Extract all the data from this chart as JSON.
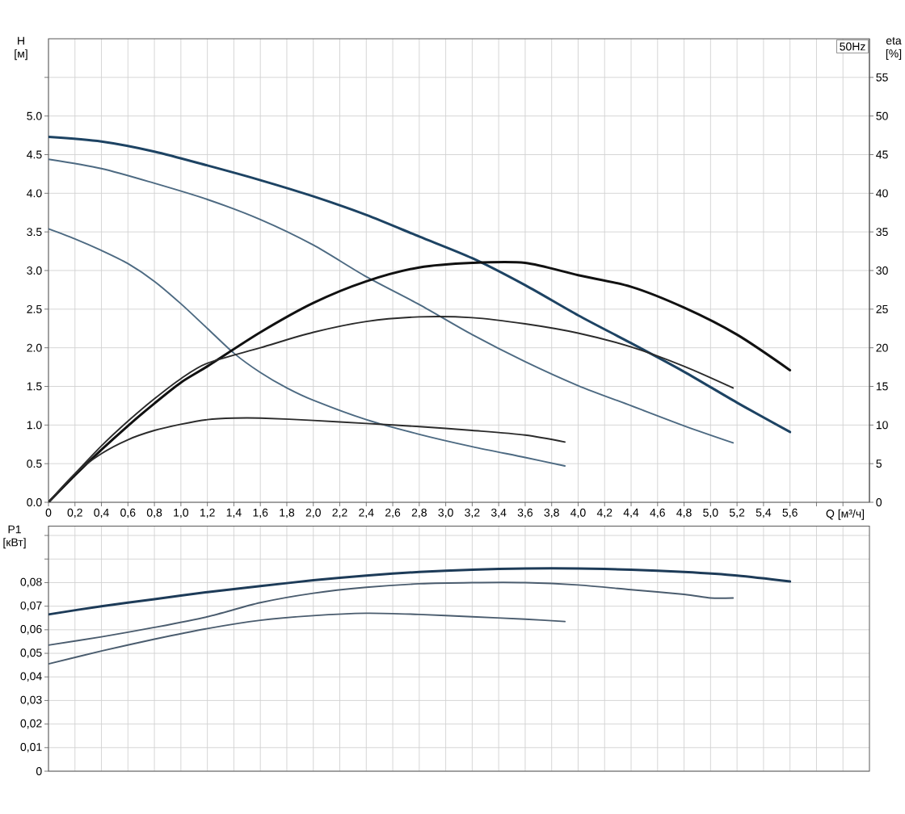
{
  "chart_data": [
    {
      "type": "line",
      "title": "50Hz",
      "xlabel": "Q [м³/ч]",
      "ylabel": "H [м]",
      "y2label": "eta [%]",
      "grid": true,
      "xlim": [
        0,
        6.2
      ],
      "xticks": [
        0,
        {
          "value": 0.2,
          "label": "0,2"
        },
        {
          "value": 0.4,
          "label": "0,4"
        },
        {
          "value": 0.6,
          "label": "0,6"
        },
        {
          "value": 0.8,
          "label": "0,8"
        },
        {
          "value": 1.0,
          "label": "1,0"
        },
        {
          "value": 1.2,
          "label": "1,2"
        },
        {
          "value": 1.4,
          "label": "1,4"
        },
        {
          "value": 1.6,
          "label": "1,6"
        },
        {
          "value": 1.8,
          "label": "1,8"
        },
        {
          "value": 2.0,
          "label": "2,0"
        },
        {
          "value": 2.2,
          "label": "2,2"
        },
        {
          "value": 2.4,
          "label": "2,4"
        },
        {
          "value": 2.6,
          "label": "2,6"
        },
        {
          "value": 2.8,
          "label": "2,8"
        },
        {
          "value": 3.0,
          "label": "3,0"
        },
        {
          "value": 3.2,
          "label": "3,2"
        },
        {
          "value": 3.4,
          "label": "3,4"
        },
        {
          "value": 3.6,
          "label": "3,6"
        },
        {
          "value": 3.8,
          "label": "3,8"
        },
        {
          "value": 4.0,
          "label": "4,0"
        },
        {
          "value": 4.2,
          "label": "4,2"
        },
        {
          "value": 4.4,
          "label": "4,4"
        },
        {
          "value": 4.6,
          "label": "4,6"
        },
        {
          "value": 4.8,
          "label": "4,8"
        },
        {
          "value": 5.0,
          "label": "5,0"
        },
        {
          "value": 5.2,
          "label": "5,2"
        },
        {
          "value": 5.4,
          "label": "5,4"
        },
        {
          "value": 5.6,
          "label": "5,6"
        },
        {
          "value": 5.8,
          "label": null
        },
        {
          "value": 6.0,
          "label": null
        }
      ],
      "ylim": [
        0,
        6
      ],
      "yticks": [
        {
          "value": 0,
          "label": "0.0"
        },
        0.5,
        {
          "value": 1,
          "label": "1.0"
        },
        1.5,
        {
          "value": 2,
          "label": "2.0"
        },
        2.5,
        {
          "value": 3,
          "label": "3.0"
        },
        3.5,
        {
          "value": 4,
          "label": "4.0"
        },
        4.5,
        {
          "value": 5,
          "label": "5.0"
        },
        {
          "value": 5.5,
          "label": null
        }
      ],
      "y2lim": [
        0,
        60
      ],
      "y2ticks": [
        0,
        5,
        10,
        15,
        20,
        25,
        30,
        35,
        40,
        45,
        50,
        55
      ],
      "series": [
        {
          "color": "#1d4363",
          "x": [
            0,
            0.4,
            0.8,
            1.2,
            1.6,
            2.0,
            2.4,
            2.8,
            3.2,
            3.6,
            4.0,
            4.4,
            4.8,
            5.2,
            5.6
          ],
          "values": [
            4.73,
            4.67,
            4.54,
            4.36,
            4.17,
            3.96,
            3.72,
            3.44,
            3.16,
            2.81,
            2.42,
            2.06,
            1.69,
            1.29,
            0.91
          ]
        },
        {
          "color": "#4d6a82",
          "x": [
            0,
            0.4,
            0.8,
            1.2,
            1.6,
            2.0,
            2.4,
            2.8,
            3.2,
            3.6,
            4.0,
            4.4,
            4.8,
            5.17
          ],
          "values": [
            4.44,
            4.32,
            4.13,
            3.92,
            3.66,
            3.33,
            2.92,
            2.56,
            2.17,
            1.82,
            1.51,
            1.25,
            0.99,
            0.77
          ]
        },
        {
          "color": "#4d6a82",
          "x": [
            0,
            0.2,
            0.4,
            0.6,
            0.8,
            1.0,
            1.2,
            1.4,
            1.6,
            1.8,
            2.0,
            2.4,
            2.8,
            3.2,
            3.6,
            3.9
          ],
          "values": [
            3.54,
            3.41,
            3.26,
            3.09,
            2.86,
            2.57,
            2.25,
            1.93,
            1.68,
            1.48,
            1.32,
            1.07,
            0.88,
            0.72,
            0.58,
            0.47
          ]
        },
        {
          "color": "#111111",
          "axis": "y2",
          "x": [
            0,
            0.2,
            0.4,
            0.6,
            0.8,
            1.0,
            1.2,
            1.6,
            2.0,
            2.4,
            2.8,
            3.2,
            3.6,
            4.0,
            4.4,
            4.8,
            5.2,
            5.6
          ],
          "values": [
            0,
            3.5,
            6.8,
            9.9,
            12.8,
            15.5,
            17.6,
            22.0,
            25.8,
            28.6,
            30.4,
            31.0,
            31.0,
            29.4,
            27.9,
            25.2,
            21.7,
            17.1
          ]
        },
        {
          "color": "#2b2b2b",
          "axis": "y2",
          "x": [
            0,
            0.2,
            0.4,
            0.6,
            0.8,
            1.0,
            1.2,
            1.6,
            2.0,
            2.4,
            2.8,
            3.2,
            3.6,
            4.0,
            4.4,
            4.8,
            5.17
          ],
          "values": [
            0,
            3.7,
            7.3,
            10.5,
            13.4,
            16.0,
            18.0,
            20.0,
            22.0,
            23.4,
            24.0,
            23.9,
            23.1,
            21.9,
            20.1,
            17.6,
            14.8
          ]
        },
        {
          "color": "#2b2b2b",
          "axis": "y2",
          "x": [
            0,
            0.2,
            0.4,
            0.6,
            0.8,
            1.0,
            1.2,
            1.4,
            1.6,
            2.0,
            2.4,
            2.8,
            3.2,
            3.6,
            3.9
          ],
          "values": [
            0,
            3.7,
            6.3,
            8.1,
            9.3,
            10.1,
            10.7,
            10.9,
            10.9,
            10.6,
            10.2,
            9.8,
            9.3,
            8.7,
            7.8
          ]
        }
      ]
    },
    {
      "type": "line",
      "ylabel": "P1 [кВт]",
      "grid": true,
      "tick_labels": "y",
      "xlim": [
        0,
        6.2
      ],
      "xticks": [
        0,
        0.2,
        0.4,
        0.6,
        0.8,
        1.0,
        1.2,
        1.4,
        1.6,
        1.8,
        2.0,
        2.2,
        2.4,
        2.6,
        2.8,
        3.0,
        3.2,
        3.4,
        3.6,
        3.8,
        4.0,
        4.2,
        4.4,
        4.6,
        4.8,
        5.0,
        5.2,
        5.4,
        5.6,
        5.8,
        6.0
      ],
      "ylim": [
        0,
        0.104
      ],
      "yticks": [
        0,
        {
          "value": 0.01,
          "label": "0,01"
        },
        {
          "value": 0.02,
          "label": "0,02"
        },
        {
          "value": 0.03,
          "label": "0,03"
        },
        {
          "value": 0.04,
          "label": "0,04"
        },
        {
          "value": 0.05,
          "label": "0,05"
        },
        {
          "value": 0.06,
          "label": "0,06"
        },
        {
          "value": 0.07,
          "label": "0,07"
        },
        {
          "value": 0.08,
          "label": "0,08"
        },
        {
          "value": 0.09,
          "label": null
        },
        {
          "value": 0.1,
          "label": null
        }
      ],
      "series": [
        {
          "color": "#1d3b58",
          "x": [
            0,
            0.4,
            0.8,
            1.2,
            1.6,
            2.0,
            2.4,
            2.8,
            3.2,
            3.6,
            4.0,
            4.4,
            4.8,
            5.2,
            5.6
          ],
          "values": [
            0.0665,
            0.07,
            0.073,
            0.076,
            0.0785,
            0.081,
            0.083,
            0.0845,
            0.0855,
            0.086,
            0.086,
            0.0855,
            0.0845,
            0.083,
            0.0805
          ]
        },
        {
          "color": "#4a5c6e",
          "x": [
            0,
            0.4,
            0.8,
            1.2,
            1.6,
            2.0,
            2.4,
            2.8,
            3.2,
            3.6,
            4.0,
            4.4,
            4.8,
            5.0,
            5.17
          ],
          "values": [
            0.0535,
            0.057,
            0.061,
            0.0655,
            0.0715,
            0.0755,
            0.078,
            0.0795,
            0.08,
            0.08,
            0.079,
            0.077,
            0.075,
            0.0735,
            0.0735
          ]
        },
        {
          "color": "#4a5c6e",
          "x": [
            0,
            0.4,
            0.8,
            1.2,
            1.6,
            2.0,
            2.4,
            2.8,
            3.2,
            3.6,
            3.9
          ],
          "values": [
            0.0455,
            0.051,
            0.056,
            0.0605,
            0.064,
            0.066,
            0.067,
            0.0665,
            0.0655,
            0.0645,
            0.0635
          ]
        }
      ]
    }
  ]
}
